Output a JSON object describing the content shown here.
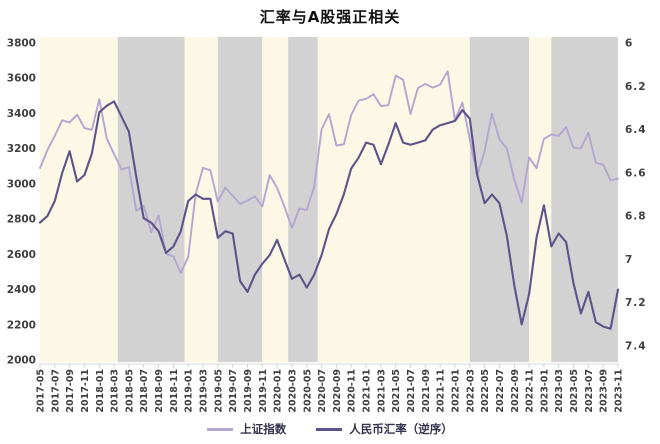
{
  "title": "汇率与A股强正相关",
  "legend": {
    "items": [
      {
        "label": "上证指数",
        "color": "#b3a7d1"
      },
      {
        "label": "人民币汇率（逆序）",
        "color": "#5b538a"
      }
    ]
  },
  "chart_data": {
    "type": "line",
    "title": "汇率与A股强正相关",
    "x_tick_labels": [
      "2017-05",
      "2017-07",
      "2017-09",
      "2017-11",
      "2018-01",
      "2018-03",
      "2018-05",
      "2018-07",
      "2018-09",
      "2018-11",
      "2019-01",
      "2019-03",
      "2019-05",
      "2019-07",
      "2019-09",
      "2019-11",
      "2020-01",
      "2020-03",
      "2020-05",
      "2020-07",
      "2020-09",
      "2020-11",
      "2021-01",
      "2021-03",
      "2021-05",
      "2021-07",
      "2021-09",
      "2021-11",
      "2022-01",
      "2022-03",
      "2022-05",
      "2022-07",
      "2022-09",
      "2022-11",
      "2023-01",
      "2023-03",
      "2023-05",
      "2023-07",
      "2023-09",
      "2023-11"
    ],
    "months_per_tick": 2,
    "left_axis": {
      "min": 2000,
      "max": 3800,
      "ticks": [
        "3800",
        "3600",
        "3400",
        "3200",
        "3000",
        "2800",
        "2600",
        "2400",
        "2200",
        "2000"
      ]
    },
    "right_axis": {
      "min": 6,
      "max": 7.4,
      "ticks": [
        "6",
        "6.2",
        "6.4",
        "6.6",
        "6.8",
        "7",
        "7.2",
        "7.4"
      ],
      "inverted_display": true
    },
    "series": [
      {
        "name": "上证指数",
        "axis": "left",
        "color": "#b3a7d1",
        "values": [
          3090,
          3192,
          3273,
          3361,
          3349,
          3393,
          3317,
          3307,
          3481,
          3259,
          3169,
          3082,
          3095,
          2847,
          2876,
          2725,
          2821,
          2603,
          2588,
          2494,
          2585,
          2941,
          3091,
          3078,
          2899,
          2979,
          2933,
          2886,
          2905,
          2929,
          2872,
          3050,
          2977,
          2870,
          2750,
          2860,
          2852,
          2985,
          3310,
          3396,
          3218,
          3225,
          3392,
          3473,
          3483,
          3509,
          3442,
          3447,
          3615,
          3591,
          3397,
          3544,
          3568,
          3547,
          3564,
          3640,
          3361,
          3462,
          3252,
          3047,
          3186,
          3399,
          3253,
          3202,
          3024,
          2893,
          3151,
          3089,
          3256,
          3280,
          3273,
          3323,
          3205,
          3202,
          3291,
          3120,
          3110,
          3019,
          3030
        ]
      },
      {
        "name": "人民币汇率（逆序）",
        "axis": "right",
        "color": "#5b538a",
        "values": [
          6.83,
          6.8,
          6.73,
          6.6,
          6.5,
          6.64,
          6.61,
          6.51,
          6.32,
          6.29,
          6.27,
          6.34,
          6.41,
          6.62,
          6.81,
          6.83,
          6.87,
          6.97,
          6.94,
          6.87,
          6.73,
          6.7,
          6.72,
          6.72,
          6.9,
          6.87,
          6.88,
          7.1,
          7.15,
          7.07,
          7.02,
          6.98,
          6.91,
          7.0,
          7.09,
          7.07,
          7.13,
          7.07,
          6.98,
          6.86,
          6.79,
          6.7,
          6.58,
          6.53,
          6.46,
          6.47,
          6.56,
          6.47,
          6.37,
          6.46,
          6.47,
          6.46,
          6.45,
          6.4,
          6.38,
          6.37,
          6.36,
          6.31,
          6.35,
          6.61,
          6.74,
          6.7,
          6.74,
          6.89,
          7.12,
          7.3,
          7.16,
          6.9,
          6.75,
          6.94,
          6.88,
          6.92,
          7.11,
          7.25,
          7.15,
          7.29,
          7.31,
          7.32,
          7.14
        ]
      }
    ],
    "background_bands": [
      {
        "from_month": 0,
        "to_month": 10.5,
        "shade": "cream"
      },
      {
        "from_month": 10.5,
        "to_month": 19.5,
        "shade": "gray"
      },
      {
        "from_month": 19.5,
        "to_month": 24,
        "shade": "cream"
      },
      {
        "from_month": 24,
        "to_month": 30,
        "shade": "gray"
      },
      {
        "from_month": 30,
        "to_month": 33.5,
        "shade": "cream"
      },
      {
        "from_month": 33.5,
        "to_month": 37.5,
        "shade": "gray"
      },
      {
        "from_month": 37.5,
        "to_month": 58,
        "shade": "cream"
      },
      {
        "from_month": 58,
        "to_month": 66,
        "shade": "gray"
      },
      {
        "from_month": 66,
        "to_month": 69,
        "shade": "cream"
      },
      {
        "from_month": 69,
        "to_month": 78,
        "shade": "gray"
      }
    ],
    "band_colors": {
      "cream": "#fdf7e6",
      "gray": "#d2d2d2"
    }
  }
}
